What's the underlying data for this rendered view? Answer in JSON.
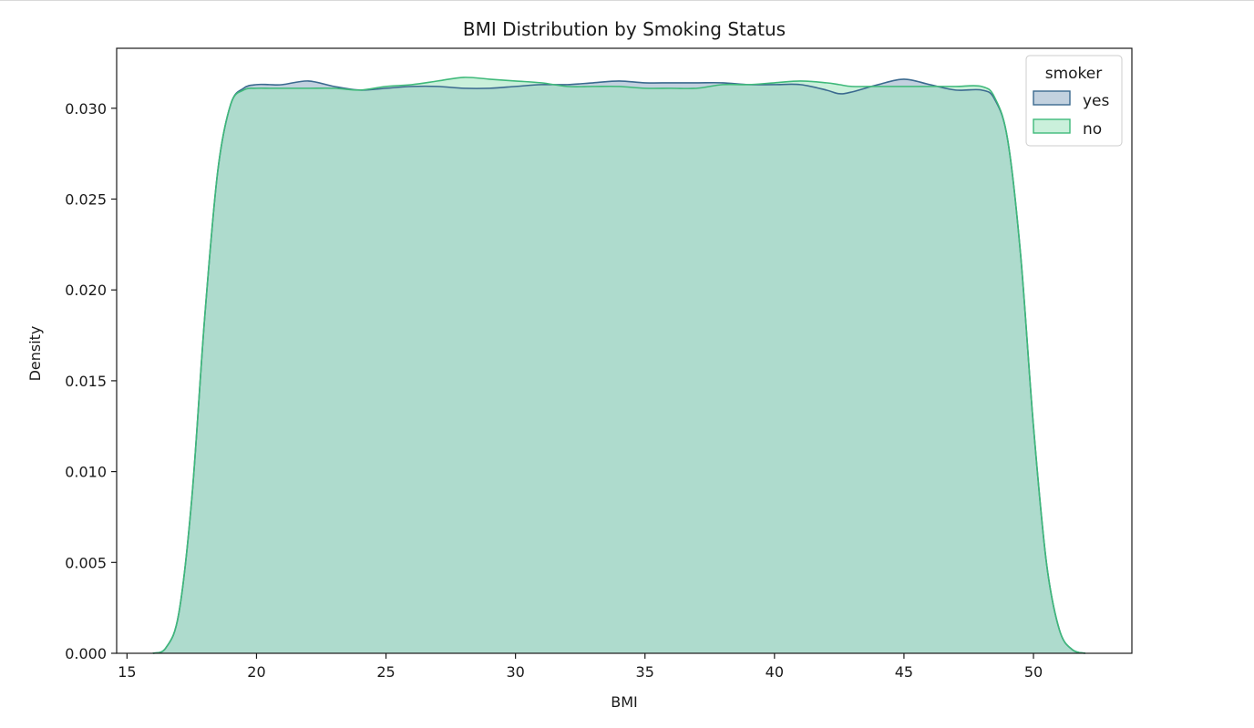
{
  "chart_data": {
    "type": "area",
    "title": "BMI Distribution by Smoking Status",
    "xlabel": "BMI",
    "ylabel": "Density",
    "xlim": [
      14.6,
      53.8
    ],
    "ylim": [
      0.0,
      0.0333
    ],
    "xticks": [
      15,
      20,
      25,
      30,
      35,
      40,
      45,
      50
    ],
    "yticks": [
      0.0,
      0.005,
      0.01,
      0.015,
      0.02,
      0.025,
      0.03
    ],
    "ytick_labels": [
      "0.000",
      "0.005",
      "0.010",
      "0.015",
      "0.020",
      "0.025",
      "0.030"
    ],
    "grid": false,
    "legend": {
      "title": "smoker",
      "placement": "top-right"
    },
    "series": [
      {
        "name": "yes",
        "line_color": "#3b6a8f",
        "fill_color": "#8fabc4",
        "x": [
          16,
          16.5,
          17,
          17.5,
          18,
          18.5,
          19,
          19.5,
          20,
          20.5,
          21,
          22,
          23,
          24,
          25,
          26,
          27,
          28,
          29,
          30,
          31,
          32,
          33,
          34,
          35,
          36,
          37,
          38,
          39,
          40,
          41,
          42,
          42.5,
          43,
          44,
          45,
          46,
          47,
          48,
          48.5,
          49,
          49.5,
          50,
          50.5,
          51,
          51.5,
          52
        ],
        "y": [
          0.0,
          0.0003,
          0.0022,
          0.0085,
          0.0185,
          0.0265,
          0.0302,
          0.0311,
          0.0313,
          0.0313,
          0.0313,
          0.0315,
          0.0312,
          0.031,
          0.0311,
          0.0312,
          0.0312,
          0.0311,
          0.0311,
          0.0312,
          0.0313,
          0.0313,
          0.0314,
          0.0315,
          0.0314,
          0.0314,
          0.0314,
          0.0314,
          0.0313,
          0.0313,
          0.0313,
          0.031,
          0.0308,
          0.0309,
          0.0313,
          0.0316,
          0.0313,
          0.031,
          0.031,
          0.0305,
          0.0283,
          0.022,
          0.0125,
          0.005,
          0.0013,
          0.0002,
          0.0
        ]
      },
      {
        "name": "no",
        "line_color": "#3fb97a",
        "fill_color": "#9ee3bd",
        "x": [
          16,
          16.5,
          17,
          17.5,
          18,
          18.5,
          19,
          19.5,
          20,
          20.5,
          21,
          22,
          23,
          24,
          25,
          26,
          27,
          28,
          29,
          30,
          31,
          32,
          33,
          34,
          35,
          36,
          37,
          38,
          39,
          40,
          41,
          42,
          42.5,
          43,
          44,
          45,
          46,
          47,
          48,
          48.5,
          49,
          49.5,
          50,
          50.5,
          51,
          51.5,
          52
        ],
        "y": [
          0.0,
          0.0003,
          0.0022,
          0.0085,
          0.0185,
          0.0265,
          0.0302,
          0.031,
          0.0311,
          0.0311,
          0.0311,
          0.0311,
          0.0311,
          0.031,
          0.0312,
          0.0313,
          0.0315,
          0.0317,
          0.0316,
          0.0315,
          0.0314,
          0.0312,
          0.0312,
          0.0312,
          0.0311,
          0.0311,
          0.0311,
          0.0313,
          0.0313,
          0.0314,
          0.0315,
          0.0314,
          0.0313,
          0.0312,
          0.0312,
          0.0312,
          0.0312,
          0.0312,
          0.0312,
          0.0306,
          0.0283,
          0.022,
          0.0125,
          0.005,
          0.0013,
          0.0002,
          0.0
        ]
      }
    ]
  }
}
